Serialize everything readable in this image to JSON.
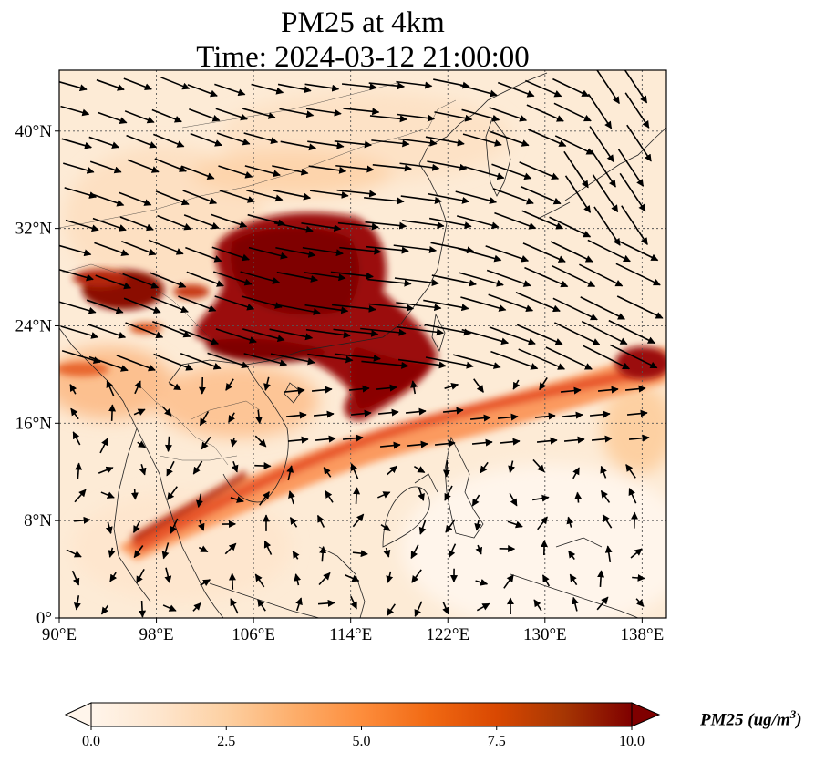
{
  "title_line1": "PM25 at 4km",
  "title_line2": "Time: 2024-03-12 21:00:00",
  "lon_ticks": [
    "90°E",
    "98°E",
    "106°E",
    "114°E",
    "122°E",
    "130°E",
    "138°E"
  ],
  "lat_ticks": [
    "0°",
    "8°N",
    "16°N",
    "24°N",
    "32°N",
    "40°N"
  ],
  "lon_values": [
    90,
    98,
    106,
    114,
    122,
    130,
    138
  ],
  "lat_values": [
    0,
    8,
    16,
    24,
    32,
    40
  ],
  "extent": {
    "lon_min": 90,
    "lon_max": 140,
    "lat_min": 0,
    "lat_max": 45
  },
  "colorbar": {
    "ticks": [
      "0.0",
      "2.5",
      "5.0",
      "7.5",
      "10.0"
    ],
    "min": 0,
    "max": 10,
    "colors": [
      "#fff5eb",
      "#fee6ce",
      "#fdd0a2",
      "#fdae6b",
      "#fd8d3c",
      "#f16913",
      "#d94801",
      "#a63603",
      "#7f0000"
    ],
    "extend": "both"
  },
  "colorbar_label": "PM25 (ug/m",
  "colorbar_label_sup": "3",
  "colorbar_label_close": ")"
}
